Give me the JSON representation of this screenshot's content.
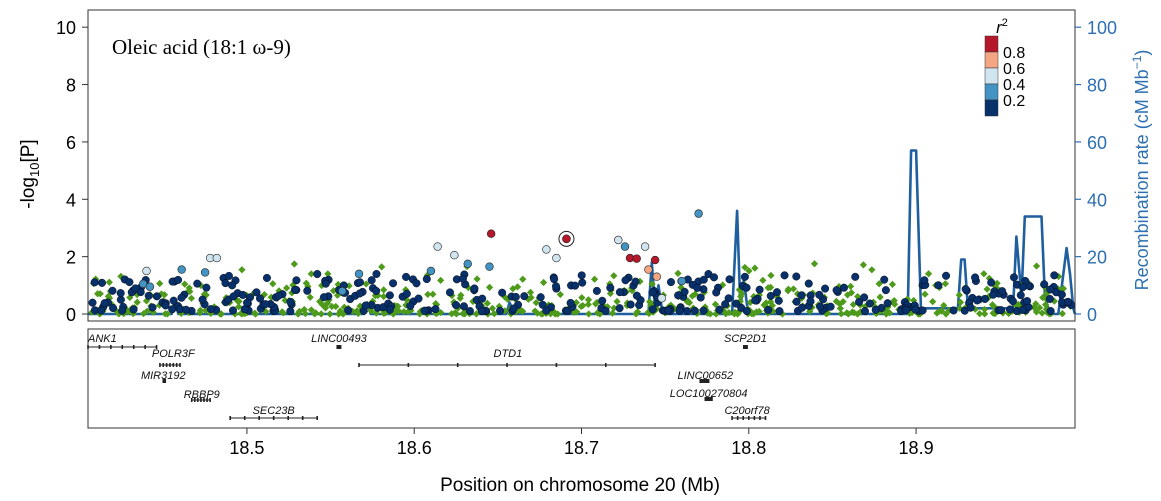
{
  "chart_data": {
    "type": "scatter",
    "title": "Oleic acid (18:1 ω-9)",
    "xlabel": "Position on chromosome 20 (Mb)",
    "ylabel": "-log10[P]",
    "ylabel_parts": {
      "prefix": "-log",
      "sub": "10",
      "suffix": "[P]"
    },
    "y2label": "Recombination rate (cM Mb",
    "y2label_sup": "−1",
    "y2label_end": ")",
    "xlim": [
      18.405,
      18.995
    ],
    "ylim": [
      0,
      10.6
    ],
    "y2lim": [
      0,
      106
    ],
    "xticks": [
      18.5,
      18.6,
      18.7,
      18.8,
      18.9
    ],
    "xtick_labels": [
      "18.5",
      "18.6",
      "18.7",
      "18.8",
      "18.9"
    ],
    "yticks": [
      0,
      2,
      4,
      6,
      8,
      10
    ],
    "ytick_labels": [
      "0",
      "2",
      "4",
      "6",
      "8",
      "10"
    ],
    "y2ticks": [
      0,
      20,
      40,
      60,
      80,
      100
    ],
    "y2tick_labels": [
      "0",
      "20",
      "40",
      "60",
      "80",
      "100"
    ],
    "legend": {
      "title_base": "r",
      "title_sup": "2",
      "placement": "top-right",
      "bins": [
        {
          "color": "#b5172b"
        },
        {
          "color": "#f4a582"
        },
        {
          "color": "#d1e5f0"
        },
        {
          "color": "#4393c3"
        },
        {
          "color": "#08306b"
        }
      ],
      "labels": [
        "0.8",
        "0.6",
        "0.4",
        "0.2"
      ]
    },
    "colors": {
      "r2_high": "#b5172b",
      "r2_mid_high": "#f4a582",
      "r2_mid": "#d1e5f0",
      "r2_mid_low": "#4393c3",
      "r2_low": "#08306b",
      "no_ld": "#4e9a1a",
      "recombination": "#1f5fa0"
    },
    "lead_snp": {
      "x": 18.691,
      "y": 2.62
    },
    "highlighted_snps": [
      {
        "x": 18.646,
        "y": 2.8,
        "r2": "high"
      },
      {
        "x": 18.729,
        "y": 1.95,
        "r2": "high"
      },
      {
        "x": 18.733,
        "y": 1.93,
        "r2": "high"
      },
      {
        "x": 18.744,
        "y": 1.88,
        "r2": "high"
      },
      {
        "x": 18.74,
        "y": 1.55,
        "r2": "mid_high"
      },
      {
        "x": 18.745,
        "y": 1.3,
        "r2": "mid_high"
      },
      {
        "x": 18.614,
        "y": 2.35,
        "r2": "mid"
      },
      {
        "x": 18.624,
        "y": 2.05,
        "r2": "mid"
      },
      {
        "x": 18.679,
        "y": 2.25,
        "r2": "mid"
      },
      {
        "x": 18.685,
        "y": 1.95,
        "r2": "mid"
      },
      {
        "x": 18.722,
        "y": 2.58,
        "r2": "mid"
      },
      {
        "x": 18.738,
        "y": 2.35,
        "r2": "mid"
      },
      {
        "x": 18.478,
        "y": 1.95,
        "r2": "mid"
      },
      {
        "x": 18.482,
        "y": 1.95,
        "r2": "mid"
      },
      {
        "x": 18.44,
        "y": 1.5,
        "r2": "mid"
      },
      {
        "x": 18.748,
        "y": 0.55,
        "r2": "mid"
      },
      {
        "x": 18.77,
        "y": 3.5,
        "r2": "mid_low"
      },
      {
        "x": 18.726,
        "y": 2.35,
        "r2": "mid_low"
      },
      {
        "x": 18.61,
        "y": 1.5,
        "r2": "mid_low"
      },
      {
        "x": 18.632,
        "y": 1.75,
        "r2": "mid_low"
      },
      {
        "x": 18.567,
        "y": 1.4,
        "r2": "mid_low"
      },
      {
        "x": 18.461,
        "y": 1.55,
        "r2": "mid_low"
      },
      {
        "x": 18.475,
        "y": 1.45,
        "r2": "mid_low"
      },
      {
        "x": 18.438,
        "y": 1.05,
        "r2": "mid_low"
      },
      {
        "x": 18.442,
        "y": 0.95,
        "r2": "mid_low"
      },
      {
        "x": 18.76,
        "y": 1.15,
        "r2": "mid_low"
      },
      {
        "x": 18.645,
        "y": 1.65,
        "r2": "mid_low"
      },
      {
        "x": 18.557,
        "y": 0.8,
        "r2": "mid_low"
      }
    ],
    "recombination_rate": {
      "x": [
        18.405,
        18.455,
        18.457,
        18.459,
        18.57,
        18.572,
        18.574,
        18.655,
        18.657,
        18.66,
        18.74,
        18.742,
        18.744,
        18.746,
        18.748,
        18.75,
        18.79,
        18.793,
        18.795,
        18.797,
        18.799,
        18.801,
        18.84,
        18.895,
        18.897,
        18.9,
        18.903,
        18.905,
        18.925,
        18.927,
        18.929,
        18.931,
        18.945,
        18.958,
        18.96,
        18.963,
        18.965,
        18.967,
        18.975,
        18.977,
        18.98,
        18.985,
        18.99,
        18.992,
        18.994,
        18.995
      ],
      "y": [
        0,
        0,
        5,
        0,
        0,
        4,
        0,
        0,
        4,
        0,
        0,
        18,
        2,
        10,
        2,
        0,
        0,
        36,
        2,
        12,
        3,
        0,
        0,
        0,
        57,
        57,
        0,
        2,
        2,
        19,
        19,
        2,
        2,
        2,
        27,
        6,
        34,
        34,
        34,
        6,
        0,
        0,
        23,
        14,
        2,
        0
      ]
    },
    "genes": [
      {
        "name": "ANK1",
        "start": 18.405,
        "end": 18.446,
        "row": 0,
        "label_x": 18.405,
        "anchor": "start"
      },
      {
        "name": "LINC00493",
        "start": 18.554,
        "end": 18.556,
        "row": 0,
        "label_x": 18.555,
        "anchor": "middle"
      },
      {
        "name": "SCP2D1",
        "start": 18.797,
        "end": 18.799,
        "row": 0,
        "label_x": 18.798,
        "anchor": "middle"
      },
      {
        "name": "POLR3F",
        "start": 18.448,
        "end": 18.46,
        "row": 1,
        "label_x": 18.456,
        "anchor": "middle"
      },
      {
        "name": "DTD1",
        "start": 18.567,
        "end": 18.744,
        "row": 1,
        "label_x": 18.656,
        "anchor": "middle"
      },
      {
        "name": "MIR3192",
        "start": 18.45,
        "end": 18.451,
        "row": 2,
        "label_x": 18.45,
        "anchor": "middle"
      },
      {
        "name": "LINC00652",
        "start": 18.771,
        "end": 18.776,
        "row": 2,
        "label_x": 18.774,
        "anchor": "middle"
      },
      {
        "name": "LOC100270804",
        "start": 18.774,
        "end": 18.778,
        "row": 3,
        "label_x": 18.776,
        "anchor": "middle"
      },
      {
        "name": "RBBP9",
        "start": 18.467,
        "end": 18.478,
        "row": 4,
        "label_x": 18.473,
        "anchor": "middle"
      },
      {
        "name": "SEC23B",
        "start": 18.49,
        "end": 18.542,
        "row": 5,
        "label_x": 18.516,
        "anchor": "middle"
      },
      {
        "name": "C20orf78",
        "start": 18.79,
        "end": 18.81,
        "row": 5,
        "label_x": 18.799,
        "anchor": "middle"
      }
    ]
  }
}
